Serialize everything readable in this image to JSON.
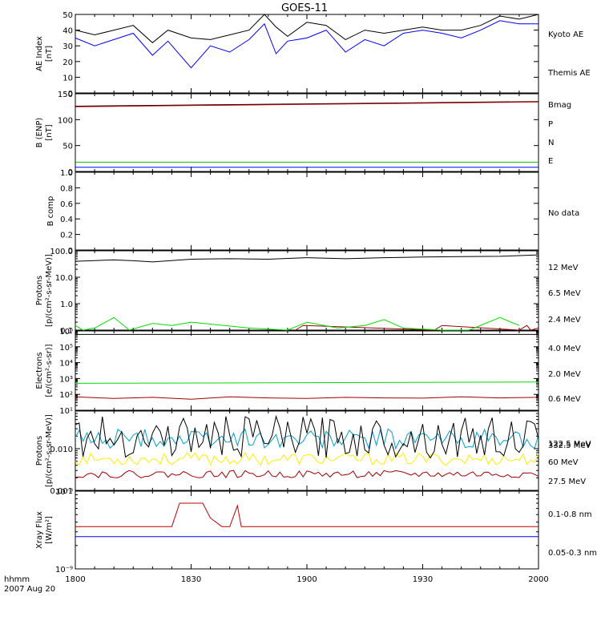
{
  "title": "GOES-11",
  "footer": {
    "time_label": "hhmm",
    "date_label": "2007 Aug 20"
  },
  "x_axis": {
    "range": [
      "18:00",
      "20:00"
    ],
    "ticks": [
      "1800",
      "1830",
      "1900",
      "1930",
      "2000"
    ]
  },
  "colors": {
    "black": "#000000",
    "blue": "#0000ff",
    "red": "#c00000",
    "green": "#00c000",
    "cyan": "#00a0d0",
    "yellow": "#ffee00",
    "darkred": "#a00000",
    "brightgreen": "#00dd00"
  },
  "chart_data": [
    {
      "type": "line",
      "panel": "ae",
      "ylabel": [
        "AE Index",
        "[nT]"
      ],
      "ylim": [
        0,
        50
      ],
      "yscale": "linear",
      "yticks": [
        "0",
        "10",
        "20",
        "30",
        "40",
        "50"
      ],
      "series": [
        {
          "name": "Kyoto AE",
          "color": "blue",
          "x": [
            "18:00",
            "18:05",
            "18:10",
            "18:15",
            "18:20",
            "18:24",
            "18:30",
            "18:35",
            "18:40",
            "18:45",
            "18:49",
            "18:52",
            "18:55",
            "19:00",
            "19:05",
            "19:10",
            "19:15",
            "19:20",
            "19:25",
            "19:30",
            "19:35",
            "19:40",
            "19:45",
            "19:50",
            "19:55",
            "20:00"
          ],
          "values": [
            35,
            30,
            34,
            38,
            24,
            33,
            16,
            30,
            26,
            34,
            44,
            25,
            33,
            35,
            40,
            26,
            34,
            30,
            38,
            40,
            38,
            35,
            40,
            46,
            44,
            44
          ]
        },
        {
          "name": "Themis AE",
          "color": "black",
          "x": [
            "18:00",
            "18:05",
            "18:10",
            "18:15",
            "18:20",
            "18:24",
            "18:30",
            "18:35",
            "18:40",
            "18:45",
            "18:49",
            "18:52",
            "18:55",
            "19:00",
            "19:05",
            "19:10",
            "19:15",
            "19:20",
            "19:25",
            "19:30",
            "19:35",
            "19:40",
            "19:45",
            "19:50",
            "19:55",
            "20:00"
          ],
          "values": [
            40,
            37,
            40,
            43,
            32,
            40,
            35,
            34,
            37,
            40,
            50,
            42,
            36,
            45,
            43,
            34,
            40,
            38,
            40,
            42,
            40,
            40,
            43,
            49,
            47,
            50
          ]
        }
      ]
    },
    {
      "type": "line",
      "panel": "b",
      "ylabel": [
        "B (ENP)",
        "[nT]"
      ],
      "ylim": [
        0,
        150
      ],
      "yscale": "linear",
      "yticks": [
        "0",
        "50",
        "100",
        "150"
      ],
      "series": [
        {
          "name": "Bmag",
          "color": "black",
          "x": [
            "18:00",
            "20:00"
          ],
          "values": [
            126,
            135
          ]
        },
        {
          "name": "P",
          "color": "red",
          "x": [
            "18:00",
            "20:00"
          ],
          "values": [
            125,
            134
          ]
        },
        {
          "name": "N",
          "color": "green",
          "x": [
            "18:00",
            "20:00"
          ],
          "values": [
            18,
            18
          ]
        },
        {
          "name": "E",
          "color": "blue",
          "x": [
            "18:00",
            "20:00"
          ],
          "values": [
            8,
            8
          ]
        }
      ]
    },
    {
      "type": "line",
      "panel": "bcomp",
      "ylabel": [
        "B comp"
      ],
      "ylim": [
        0,
        1
      ],
      "yscale": "linear",
      "yticks": [
        "0",
        "0.2",
        "0.4",
        "0.6",
        "0.8",
        "1.0"
      ],
      "series": [],
      "note": "No data"
    },
    {
      "type": "line",
      "panel": "protons_low",
      "ylabel": [
        "Protons",
        "[p/(cm²-s-sr-MeV)]"
      ],
      "ylim": [
        0.1,
        100
      ],
      "yscale": "log",
      "yticks": [
        "0.1",
        "1.0",
        "10.0",
        "100.0"
      ],
      "series": [
        {
          "name": "12 MeV",
          "color": "darkred",
          "x": [
            "18:57",
            "18:59",
            "19:33",
            "19:35",
            "19:55",
            "19:57",
            "19:58",
            "20:00"
          ],
          "values": [
            0.1,
            0.15,
            0.1,
            0.15,
            0.1,
            0.15,
            0.1,
            0.12
          ]
        },
        {
          "name": "6.5 MeV",
          "color": "brightgreen",
          "x": [
            "18:00",
            "18:02",
            "18:05",
            "18:10",
            "18:14",
            "18:20",
            "18:25",
            "18:30",
            "18:45",
            "18:55",
            "19:00",
            "19:08",
            "19:15",
            "19:20",
            "19:25",
            "19:35",
            "19:42",
            "19:50",
            "19:55"
          ],
          "values": [
            0.15,
            0.1,
            0.12,
            0.3,
            0.1,
            0.18,
            0.15,
            0.2,
            0.12,
            0.1,
            0.2,
            0.12,
            0.15,
            0.25,
            0.12,
            0.1,
            0.1,
            0.3,
            0.15
          ]
        },
        {
          "name": "2.4 MeV",
          "color": "black",
          "x": [
            "18:00",
            "18:10",
            "18:15",
            "18:20",
            "18:30",
            "18:40",
            "18:50",
            "19:00",
            "19:10",
            "19:20",
            "19:30",
            "19:40",
            "19:50",
            "20:00"
          ],
          "values": [
            40,
            45,
            42,
            38,
            48,
            50,
            48,
            55,
            50,
            55,
            58,
            60,
            62,
            70
          ]
        }
      ]
    },
    {
      "type": "line",
      "panel": "electrons",
      "ylabel": [
        "Electrons",
        "[e/(cm²-s-sr)]"
      ],
      "ylim": [
        10,
        1000000
      ],
      "yscale": "log",
      "yticks": [
        "10¹",
        "10²",
        "10³",
        "10⁴",
        "10⁵",
        "10⁶"
      ],
      "series": [
        {
          "name": "4.0 MeV",
          "color": "darkred",
          "x": [
            "18:00",
            "18:10",
            "18:20",
            "18:30",
            "18:40",
            "18:50",
            "19:00",
            "19:10",
            "19:20",
            "19:30",
            "19:40",
            "19:50",
            "20:00"
          ],
          "values": [
            70,
            55,
            65,
            50,
            70,
            60,
            55,
            65,
            60,
            58,
            70,
            60,
            65
          ]
        },
        {
          "name": "2.0 MeV",
          "color": "brightgreen",
          "x": [
            "18:00",
            "20:00"
          ],
          "values": [
            500,
            600
          ]
        },
        {
          "name": "0.6 MeV",
          "color": "black",
          "x": [
            "18:00",
            "20:00"
          ],
          "values": [
            600000,
            600000
          ]
        }
      ]
    },
    {
      "type": "line",
      "panel": "protons_high",
      "ylabel": [
        "Protons",
        "[p/(cm²-s-sr-MeV)]"
      ],
      "ylim": [
        0.001,
        0.08
      ],
      "yscale": "log",
      "yticks": [
        "0.001",
        "0.010"
      ],
      "series": [
        {
          "name": "332.5 MeV",
          "color": "darkred",
          "values": [
            0.002,
            0.003
          ],
          "pattern": "noise"
        },
        {
          "name": "122.5 MeV",
          "color": "yellow",
          "values": [
            0.004,
            0.008
          ],
          "pattern": "noise"
        },
        {
          "name": "60 MeV",
          "color": "cyan",
          "values": [
            0.01,
            0.03
          ],
          "pattern": "noise"
        },
        {
          "name": "27.5 MeV",
          "color": "black",
          "values": [
            0.006,
            0.06
          ],
          "pattern": "noise"
        }
      ]
    },
    {
      "type": "line",
      "panel": "xray",
      "ylabel": [
        "Xray Flux",
        "[W/m²]"
      ],
      "ylim": [
        1e-09,
        1e-08
      ],
      "yscale": "log",
      "yticks": [
        "10⁻⁹",
        "10⁻⁸"
      ],
      "series": [
        {
          "name": "0.1-0.8 nm",
          "color": "red",
          "x": [
            "18:00",
            "18:25",
            "18:27",
            "18:33",
            "18:35",
            "18:38",
            "18:40",
            "18:42",
            "18:43",
            "18:45",
            "20:00"
          ],
          "values": [
            3.5e-09,
            3.5e-09,
            7e-09,
            7e-09,
            4.5e-09,
            3.5e-09,
            3.5e-09,
            6.5e-09,
            3.5e-09,
            3.5e-09,
            3.5e-09
          ]
        },
        {
          "name": "0.05-0.3 nm",
          "color": "blue",
          "x": [
            "18:00",
            "20:00"
          ],
          "values": [
            2.6e-09,
            2.6e-09
          ]
        }
      ]
    }
  ]
}
